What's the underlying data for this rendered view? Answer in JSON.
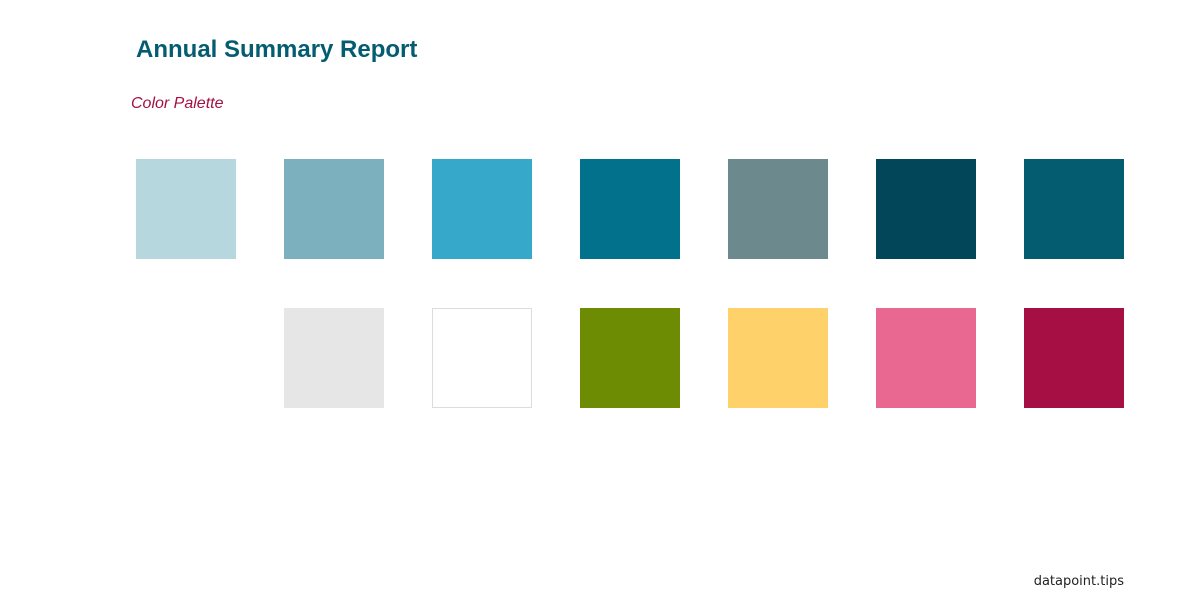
{
  "header": {
    "title": "Annual Summary Report",
    "subtitle": "Color Palette"
  },
  "palette": {
    "row1": [
      "#b6d7dd",
      "#7db0bf",
      "#36a8c9",
      "#02718c",
      "#6c898d",
      "#024659",
      "#045c70"
    ],
    "row2": [
      "#e6e6e6",
      "#ffffff",
      "#6d8b03",
      "#ffd16a",
      "#e96892",
      "#a50f44"
    ]
  },
  "footer": {
    "credit": "datapoint.tips"
  }
}
